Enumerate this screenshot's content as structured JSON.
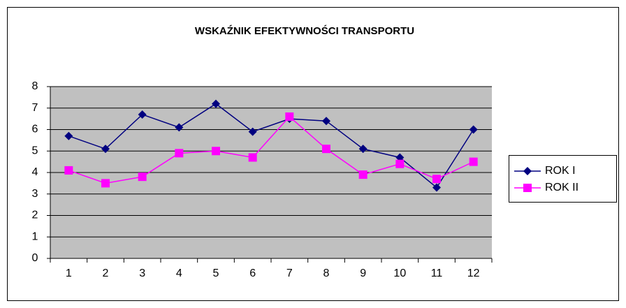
{
  "chart_data": {
    "type": "line",
    "title": "WSKAŹNIK EFEKTYWNOŚCI  TRANSPORTU",
    "categories": [
      "1",
      "2",
      "3",
      "4",
      "5",
      "6",
      "7",
      "8",
      "9",
      "10",
      "11",
      "12"
    ],
    "series": [
      {
        "name": "ROK I",
        "color": "#000080",
        "values": [
          5.7,
          5.1,
          6.7,
          6.1,
          7.2,
          5.9,
          6.5,
          6.4,
          5.1,
          4.7,
          3.3,
          6.0
        ]
      },
      {
        "name": "ROK II",
        "color": "#FF00FF",
        "values": [
          4.1,
          3.5,
          3.8,
          4.9,
          5.0,
          4.7,
          6.6,
          5.1,
          3.9,
          4.4,
          3.7,
          4.5
        ]
      }
    ],
    "ylim": [
      0,
      8
    ],
    "yticks": [
      0,
      1,
      2,
      3,
      4,
      5,
      6,
      7,
      8
    ],
    "grid": true,
    "legend": "right"
  }
}
